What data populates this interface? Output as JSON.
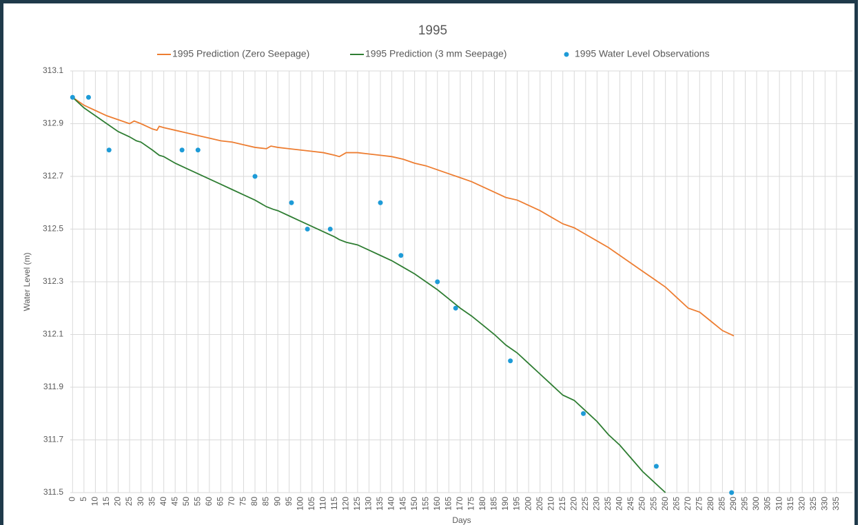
{
  "chart_data": {
    "type": "line",
    "title": "1995",
    "xlabel": "Days",
    "ylabel": "Water Level (m)",
    "xlim": [
      -1,
      342
    ],
    "ylim": [
      311.5,
      313.1
    ],
    "xticks": [
      0,
      5,
      10,
      15,
      20,
      25,
      30,
      35,
      40,
      45,
      50,
      55,
      60,
      65,
      70,
      75,
      80,
      85,
      90,
      95,
      100,
      105,
      110,
      115,
      120,
      125,
      130,
      135,
      140,
      145,
      150,
      155,
      160,
      165,
      170,
      175,
      180,
      185,
      190,
      195,
      200,
      205,
      210,
      215,
      220,
      225,
      230,
      235,
      240,
      245,
      250,
      255,
      260,
      265,
      270,
      275,
      280,
      285,
      290,
      295,
      300,
      305,
      310,
      315,
      320,
      325,
      330,
      335
    ],
    "yticks": [
      311.5,
      311.7,
      311.9,
      312.1,
      312.3,
      312.5,
      312.7,
      312.9,
      313.1
    ],
    "grid": true,
    "series": [
      {
        "name": "1995 Prediction (Zero Seepage)",
        "color": "#ed7d31",
        "kind": "line",
        "x": [
          0,
          5,
          10,
          15,
          20,
          25,
          27,
          30,
          35,
          37,
          38,
          40,
          45,
          50,
          55,
          60,
          65,
          70,
          75,
          80,
          85,
          87,
          90,
          95,
          100,
          105,
          110,
          115,
          117,
          120,
          125,
          130,
          135,
          140,
          145,
          150,
          155,
          160,
          165,
          170,
          175,
          180,
          185,
          190,
          195,
          200,
          205,
          210,
          215,
          220,
          225,
          230,
          235,
          240,
          245,
          250,
          255,
          260,
          265,
          270,
          275,
          280,
          285,
          290
        ],
        "values": [
          313.0,
          312.97,
          312.95,
          312.93,
          312.915,
          312.9,
          312.91,
          312.9,
          312.88,
          312.875,
          312.89,
          312.885,
          312.875,
          312.865,
          312.855,
          312.845,
          312.835,
          312.83,
          312.82,
          312.81,
          312.805,
          312.815,
          312.81,
          312.805,
          312.8,
          312.795,
          312.79,
          312.78,
          312.775,
          312.79,
          312.79,
          312.785,
          312.78,
          312.775,
          312.765,
          312.75,
          312.74,
          312.725,
          312.71,
          312.695,
          312.68,
          312.66,
          312.64,
          312.62,
          312.61,
          312.59,
          312.57,
          312.545,
          312.52,
          312.505,
          312.48,
          312.455,
          312.43,
          312.4,
          312.37,
          312.34,
          312.31,
          312.28,
          312.24,
          312.2,
          312.185,
          312.15,
          312.115,
          312.095
        ]
      },
      {
        "name": "1995 Prediction (3 mm Seepage)",
        "color": "#2e7d32",
        "kind": "line",
        "x": [
          0,
          5,
          10,
          15,
          20,
          25,
          28,
          30,
          35,
          38,
          40,
          45,
          50,
          55,
          60,
          65,
          70,
          75,
          80,
          85,
          88,
          90,
          95,
          100,
          105,
          110,
          115,
          117,
          120,
          125,
          130,
          135,
          140,
          145,
          150,
          155,
          160,
          165,
          170,
          175,
          180,
          185,
          190,
          195,
          200,
          205,
          210,
          215,
          220,
          225,
          230,
          235,
          240,
          245,
          250,
          255,
          260
        ],
        "values": [
          313.0,
          312.96,
          312.93,
          312.9,
          312.87,
          312.85,
          312.835,
          312.83,
          312.8,
          312.78,
          312.775,
          312.75,
          312.73,
          312.71,
          312.69,
          312.67,
          312.65,
          312.63,
          312.61,
          312.585,
          312.575,
          312.57,
          312.55,
          312.53,
          312.51,
          312.49,
          312.47,
          312.46,
          312.45,
          312.44,
          312.42,
          312.4,
          312.38,
          312.355,
          312.33,
          312.3,
          312.27,
          312.235,
          312.2,
          312.17,
          312.135,
          312.1,
          312.06,
          312.03,
          311.99,
          311.95,
          311.91,
          311.87,
          311.85,
          311.81,
          311.77,
          311.72,
          311.68,
          311.63,
          311.58,
          311.54,
          311.5
        ]
      },
      {
        "name": "1995 Water Level Observations",
        "color": "#1e9bd7",
        "kind": "scatter",
        "x": [
          0,
          7,
          16,
          48,
          55,
          80,
          96,
          103,
          113,
          135,
          144,
          160,
          168,
          192,
          224,
          256,
          289
        ],
        "values": [
          313.0,
          313.0,
          312.8,
          312.8,
          312.8,
          312.7,
          312.6,
          312.5,
          312.5,
          312.6,
          312.4,
          312.3,
          312.2,
          312.0,
          311.8,
          311.6,
          311.5
        ]
      }
    ]
  }
}
